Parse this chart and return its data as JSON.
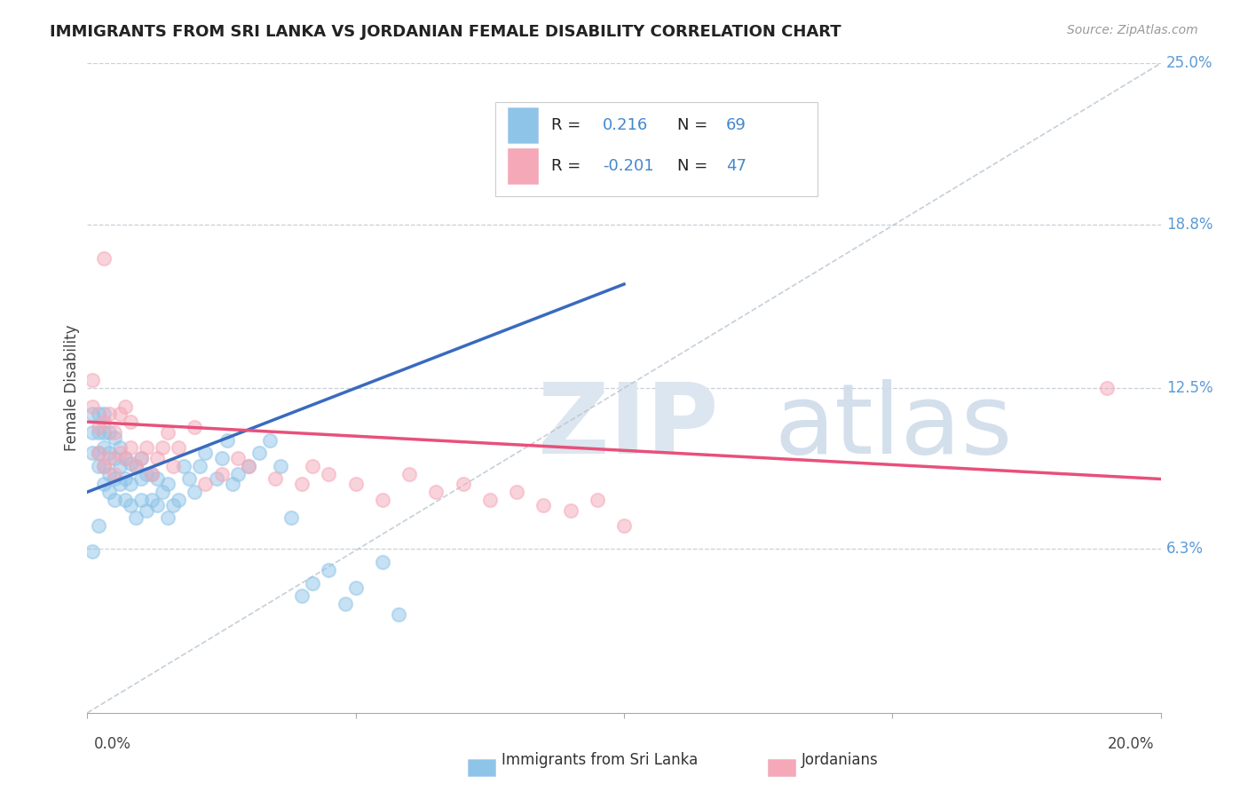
{
  "title": "IMMIGRANTS FROM SRI LANKA VS JORDANIAN FEMALE DISABILITY CORRELATION CHART",
  "source": "Source: ZipAtlas.com",
  "ylabel": "Female Disability",
  "legend_label1": "Immigrants from Sri Lanka",
  "legend_label2": "Jordanians",
  "R1": 0.216,
  "N1": 69,
  "R2": -0.201,
  "N2": 47,
  "xlim": [
    0,
    0.2
  ],
  "ylim": [
    0,
    0.25
  ],
  "yticks": [
    0.063,
    0.125,
    0.188,
    0.25
  ],
  "ytick_labels": [
    "6.3%",
    "12.5%",
    "18.8%",
    "25.0%"
  ],
  "xtick_left_label": "0.0%",
  "xtick_right_label": "20.0%",
  "color_blue": "#8ec4e8",
  "color_pink": "#f4a8b8",
  "color_trendline_blue": "#3a6abf",
  "color_trendline_pink": "#e8507a",
  "color_refline": "#b8c4d0",
  "blue_trendline": [
    0.0,
    0.085,
    0.1,
    0.165
  ],
  "pink_trendline": [
    0.0,
    0.112,
    0.2,
    0.09
  ],
  "blue_x": [
    0.001,
    0.001,
    0.001,
    0.002,
    0.002,
    0.002,
    0.002,
    0.003,
    0.003,
    0.003,
    0.003,
    0.003,
    0.004,
    0.004,
    0.004,
    0.004,
    0.005,
    0.005,
    0.005,
    0.005,
    0.006,
    0.006,
    0.006,
    0.007,
    0.007,
    0.007,
    0.008,
    0.008,
    0.008,
    0.009,
    0.009,
    0.01,
    0.01,
    0.01,
    0.011,
    0.011,
    0.012,
    0.012,
    0.013,
    0.013,
    0.014,
    0.015,
    0.015,
    0.016,
    0.017,
    0.018,
    0.019,
    0.02,
    0.021,
    0.022,
    0.024,
    0.025,
    0.026,
    0.027,
    0.028,
    0.03,
    0.032,
    0.034,
    0.036,
    0.038,
    0.04,
    0.042,
    0.045,
    0.048,
    0.05,
    0.055,
    0.058,
    0.001,
    0.002
  ],
  "blue_y": [
    0.1,
    0.108,
    0.115,
    0.095,
    0.1,
    0.108,
    0.115,
    0.088,
    0.095,
    0.102,
    0.108,
    0.115,
    0.085,
    0.092,
    0.1,
    0.108,
    0.082,
    0.09,
    0.098,
    0.106,
    0.088,
    0.095,
    0.102,
    0.082,
    0.09,
    0.098,
    0.08,
    0.088,
    0.096,
    0.075,
    0.095,
    0.082,
    0.09,
    0.098,
    0.078,
    0.092,
    0.082,
    0.092,
    0.08,
    0.09,
    0.085,
    0.075,
    0.088,
    0.08,
    0.082,
    0.095,
    0.09,
    0.085,
    0.095,
    0.1,
    0.09,
    0.098,
    0.105,
    0.088,
    0.092,
    0.095,
    0.1,
    0.105,
    0.095,
    0.075,
    0.045,
    0.05,
    0.055,
    0.042,
    0.048,
    0.058,
    0.038,
    0.062,
    0.072
  ],
  "pink_x": [
    0.001,
    0.001,
    0.002,
    0.002,
    0.003,
    0.003,
    0.004,
    0.004,
    0.005,
    0.005,
    0.006,
    0.006,
    0.007,
    0.007,
    0.008,
    0.008,
    0.009,
    0.01,
    0.011,
    0.012,
    0.013,
    0.014,
    0.015,
    0.016,
    0.017,
    0.02,
    0.022,
    0.025,
    0.028,
    0.03,
    0.035,
    0.04,
    0.042,
    0.045,
    0.05,
    0.055,
    0.06,
    0.065,
    0.07,
    0.075,
    0.08,
    0.085,
    0.09,
    0.095,
    0.1,
    0.19,
    0.003
  ],
  "pink_y": [
    0.118,
    0.128,
    0.1,
    0.11,
    0.095,
    0.112,
    0.098,
    0.115,
    0.092,
    0.108,
    0.1,
    0.115,
    0.098,
    0.118,
    0.102,
    0.112,
    0.095,
    0.098,
    0.102,
    0.092,
    0.098,
    0.102,
    0.108,
    0.095,
    0.102,
    0.11,
    0.088,
    0.092,
    0.098,
    0.095,
    0.09,
    0.088,
    0.095,
    0.092,
    0.088,
    0.082,
    0.092,
    0.085,
    0.088,
    0.082,
    0.085,
    0.08,
    0.078,
    0.082,
    0.072,
    0.125,
    0.175
  ]
}
